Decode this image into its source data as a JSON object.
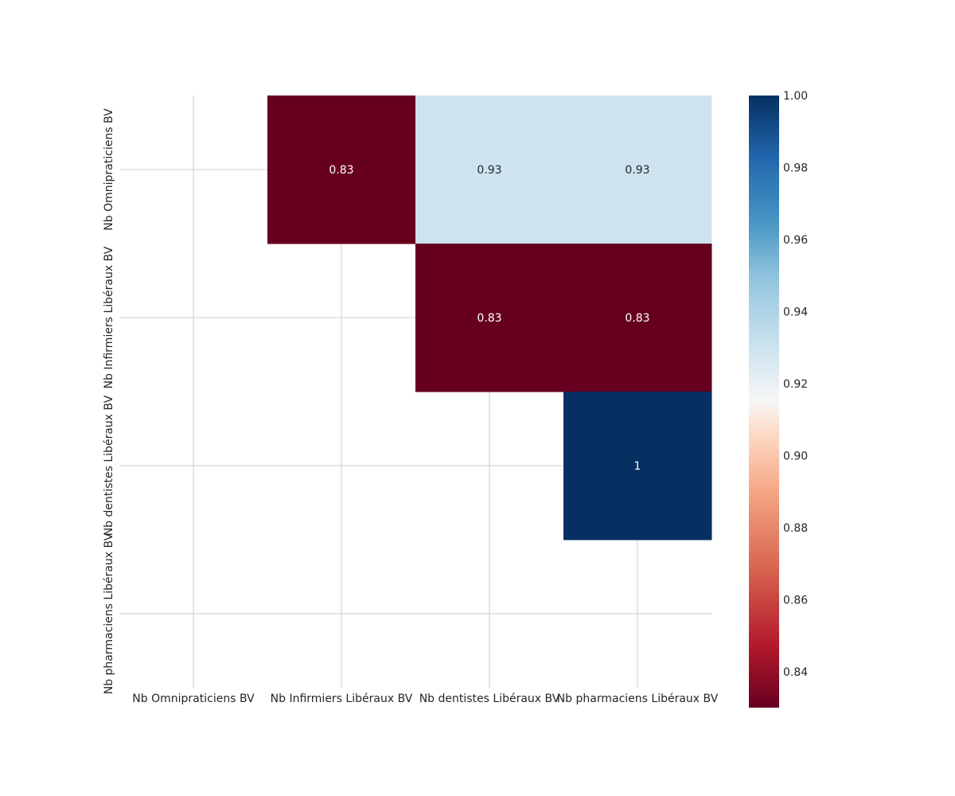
{
  "chart_data": {
    "type": "heatmap",
    "rows": [
      "Nb Omnipraticiens BV",
      "Nb Infirmiers Libéraux BV",
      "Nb dentistes Libéraux BV",
      "Nb pharmaciens Libéraux BV"
    ],
    "columns": [
      "Nb Omnipraticiens BV",
      "Nb Infirmiers Libéraux BV",
      "Nb dentistes Libéraux BV",
      "Nb pharmaciens Libéraux BV"
    ],
    "values": [
      [
        null,
        0.83,
        0.93,
        0.93
      ],
      [
        null,
        null,
        0.83,
        0.83
      ],
      [
        null,
        null,
        null,
        1
      ],
      [
        null,
        null,
        null,
        null
      ]
    ],
    "value_labels": [
      [
        null,
        "0.83",
        "0.93",
        "0.93"
      ],
      [
        null,
        null,
        "0.83",
        "0.83"
      ],
      [
        null,
        null,
        null,
        "1"
      ],
      [
        null,
        null,
        null,
        null
      ]
    ],
    "mask": "lower triangle and diagonal hidden",
    "colormap": "RdBu",
    "vmin": 0.83,
    "vmax": 1.0,
    "colorbar_ticks": [
      "0.84",
      "0.86",
      "0.88",
      "0.90",
      "0.92",
      "0.94",
      "0.96",
      "0.98",
      "1.00"
    ],
    "colorbar_tick_values": [
      0.84,
      0.86,
      0.88,
      0.9,
      0.92,
      0.94,
      0.96,
      0.98,
      1.0
    ],
    "grid": true,
    "colors": {
      "grid": "#cccccc",
      "text_dark": "#262626",
      "text_light": "#ffffff"
    }
  }
}
